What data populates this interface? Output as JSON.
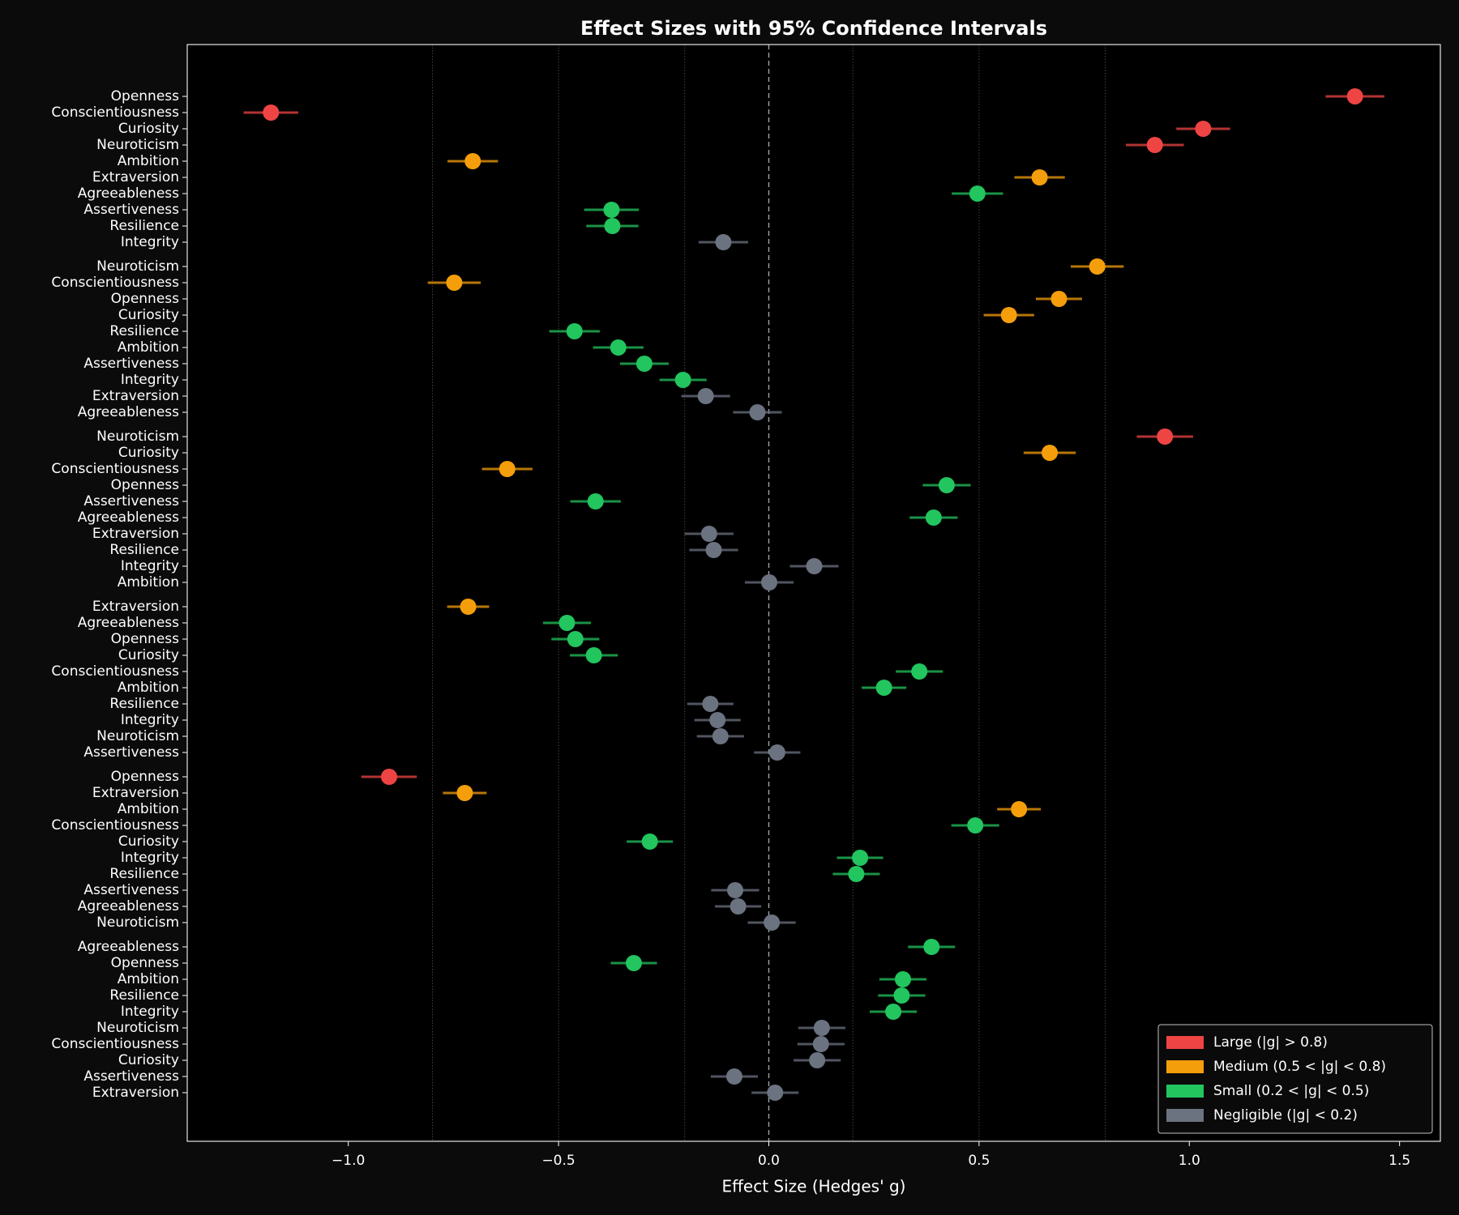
{
  "chart_data": {
    "type": "forest",
    "title": "Effect Sizes with 95% Confidence Intervals",
    "xlabel": "Effect Size (Hedges' g)",
    "xlim": [
      -1.383,
      1.597
    ],
    "xticks": [
      {
        "value": -1.0,
        "label": "−1.0"
      },
      {
        "value": -0.5,
        "label": "−0.5"
      },
      {
        "value": 0.0,
        "label": "0.0"
      },
      {
        "value": 0.5,
        "label": "0.5"
      },
      {
        "value": 1.0,
        "label": "1.0"
      },
      {
        "value": 1.5,
        "label": "1.5"
      }
    ],
    "reference_lines": [
      -0.8,
      -0.5,
      -0.2,
      0.2,
      0.5,
      0.8
    ],
    "zero_line": 0,
    "legend": {
      "loc": "lower right",
      "entries": [
        {
          "name": "Large (|g| > 0.8)",
          "color": "#ef4444"
        },
        {
          "name": "Medium (0.5 < |g| < 0.8)",
          "color": "#f59e0b"
        },
        {
          "name": "Small (0.2 < |g| < 0.5)",
          "color": "#22c55e"
        },
        {
          "name": "Negligible (|g| < 0.2)",
          "color": "#6b7280"
        }
      ]
    },
    "groups": [
      {
        "labels": [
          "Openness",
          "Conscientiousness",
          "Curiosity",
          "Neuroticism",
          "Ambition",
          "Extraversion",
          "Agreeableness",
          "Assertiveness",
          "Resilience",
          "Integrity"
        ],
        "values": [
          1.394,
          -1.184,
          1.033,
          0.918,
          -0.704,
          0.644,
          0.496,
          -0.374,
          -0.372,
          -0.108
        ],
        "errors": [
          0.07,
          0.065,
          0.064,
          0.069,
          0.06,
          0.06,
          0.061,
          0.065,
          0.062,
          0.059
        ],
        "colors": [
          "#ef4444",
          "#ef4444",
          "#ef4444",
          "#ef4444",
          "#f59e0b",
          "#f59e0b",
          "#22c55e",
          "#22c55e",
          "#22c55e",
          "#6b7280"
        ]
      },
      {
        "labels": [
          "Neuroticism",
          "Conscientiousness",
          "Openness",
          "Curiosity",
          "Resilience",
          "Ambition",
          "Assertiveness",
          "Integrity",
          "Extraversion",
          "Agreeableness"
        ],
        "values": [
          0.781,
          -0.748,
          0.69,
          0.571,
          -0.462,
          -0.358,
          -0.296,
          -0.204,
          -0.15,
          -0.027
        ],
        "errors": [
          0.063,
          0.063,
          0.055,
          0.06,
          0.06,
          0.06,
          0.058,
          0.056,
          0.058,
          0.058
        ],
        "colors": [
          "#f59e0b",
          "#f59e0b",
          "#f59e0b",
          "#f59e0b",
          "#22c55e",
          "#22c55e",
          "#22c55e",
          "#22c55e",
          "#6b7280",
          "#6b7280"
        ]
      },
      {
        "labels": [
          "Neuroticism",
          "Curiosity",
          "Conscientiousness",
          "Openness",
          "Assertiveness",
          "Agreeableness",
          "Extraversion",
          "Resilience",
          "Integrity",
          "Ambition"
        ],
        "values": [
          0.942,
          0.668,
          -0.622,
          0.423,
          -0.412,
          0.392,
          -0.142,
          -0.131,
          0.108,
          0.001
        ],
        "errors": [
          0.067,
          0.062,
          0.06,
          0.057,
          0.06,
          0.057,
          0.058,
          0.058,
          0.058,
          0.058
        ],
        "colors": [
          "#ef4444",
          "#f59e0b",
          "#f59e0b",
          "#22c55e",
          "#22c55e",
          "#22c55e",
          "#6b7280",
          "#6b7280",
          "#6b7280",
          "#6b7280"
        ]
      },
      {
        "labels": [
          "Extraversion",
          "Agreeableness",
          "Openness",
          "Curiosity",
          "Conscientiousness",
          "Ambition",
          "Resilience",
          "Integrity",
          "Neuroticism",
          "Assertiveness"
        ],
        "values": [
          -0.715,
          -0.48,
          -0.46,
          -0.416,
          0.358,
          0.274,
          -0.139,
          -0.122,
          -0.115,
          0.02
        ],
        "errors": [
          0.05,
          0.057,
          0.057,
          0.057,
          0.056,
          0.053,
          0.055,
          0.055,
          0.056,
          0.055
        ],
        "colors": [
          "#f59e0b",
          "#22c55e",
          "#22c55e",
          "#22c55e",
          "#22c55e",
          "#22c55e",
          "#6b7280",
          "#6b7280",
          "#6b7280",
          "#6b7280"
        ]
      },
      {
        "labels": [
          "Openness",
          "Extraversion",
          "Ambition",
          "Conscientiousness",
          "Curiosity",
          "Integrity",
          "Resilience",
          "Assertiveness",
          "Agreeableness",
          "Neuroticism"
        ],
        "values": [
          -0.903,
          -0.723,
          0.595,
          0.491,
          -0.283,
          0.217,
          0.208,
          -0.08,
          -0.073,
          0.007
        ],
        "errors": [
          0.066,
          0.052,
          0.052,
          0.057,
          0.055,
          0.055,
          0.056,
          0.057,
          0.055,
          0.057
        ],
        "colors": [
          "#ef4444",
          "#f59e0b",
          "#f59e0b",
          "#22c55e",
          "#22c55e",
          "#22c55e",
          "#22c55e",
          "#6b7280",
          "#6b7280",
          "#6b7280"
        ]
      },
      {
        "labels": [
          "Agreeableness",
          "Openness",
          "Ambition",
          "Resilience",
          "Integrity",
          "Neuroticism",
          "Conscientiousness",
          "Curiosity",
          "Assertiveness",
          "Extraversion"
        ],
        "values": [
          0.387,
          -0.321,
          0.319,
          0.316,
          0.296,
          0.126,
          0.124,
          0.115,
          -0.082,
          0.015
        ],
        "errors": [
          0.056,
          0.055,
          0.056,
          0.056,
          0.056,
          0.056,
          0.056,
          0.056,
          0.056,
          0.056
        ],
        "colors": [
          "#22c55e",
          "#22c55e",
          "#22c55e",
          "#22c55e",
          "#22c55e",
          "#6b7280",
          "#6b7280",
          "#6b7280",
          "#6b7280",
          "#6b7280"
        ]
      }
    ]
  }
}
